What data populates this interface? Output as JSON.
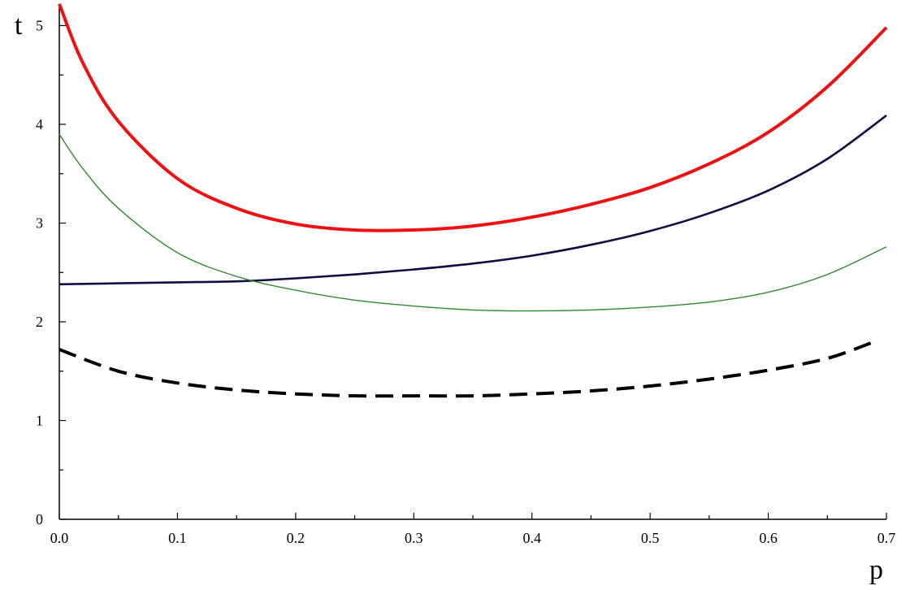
{
  "chart_data": {
    "type": "line",
    "title": "",
    "xlabel": "p",
    "ylabel": "t",
    "xlim": [
      0,
      0.7
    ],
    "ylim": [
      0,
      5.2
    ],
    "grid": false,
    "x_ticks": [
      "0.0",
      "0.1",
      "0.2",
      "0.3",
      "0.4",
      "0.5",
      "0.6",
      "0.7"
    ],
    "y_ticks": [
      "0",
      "1",
      "2",
      "3",
      "4",
      "5"
    ],
    "series": [
      {
        "color": "#ee1111",
        "style": "solid-thick",
        "x": [
          0,
          0.02,
          0.05,
          0.1,
          0.15,
          0.2,
          0.25,
          0.3,
          0.35,
          0.4,
          0.45,
          0.5,
          0.55,
          0.6,
          0.65,
          0.7
        ],
        "y": [
          5.22,
          4.62,
          4.03,
          3.45,
          3.15,
          2.99,
          2.93,
          2.93,
          2.97,
          3.06,
          3.19,
          3.36,
          3.6,
          3.92,
          4.38,
          4.98
        ]
      },
      {
        "color": "#0d0d45",
        "style": "solid",
        "x": [
          0,
          0.05,
          0.1,
          0.15,
          0.2,
          0.25,
          0.3,
          0.35,
          0.4,
          0.45,
          0.5,
          0.55,
          0.6,
          0.65,
          0.7
        ],
        "y": [
          2.38,
          2.39,
          2.4,
          2.41,
          2.44,
          2.48,
          2.53,
          2.59,
          2.67,
          2.78,
          2.92,
          3.1,
          3.33,
          3.65,
          4.09
        ]
      },
      {
        "color": "#2e8b2e",
        "style": "solid-thin",
        "x": [
          0,
          0.02,
          0.05,
          0.1,
          0.15,
          0.2,
          0.25,
          0.3,
          0.35,
          0.4,
          0.45,
          0.5,
          0.55,
          0.6,
          0.65,
          0.7
        ],
        "y": [
          3.9,
          3.55,
          3.15,
          2.7,
          2.46,
          2.32,
          2.22,
          2.16,
          2.12,
          2.11,
          2.12,
          2.15,
          2.2,
          2.3,
          2.48,
          2.76
        ]
      },
      {
        "color": "#000000",
        "style": "dashed",
        "x": [
          0,
          0.05,
          0.1,
          0.15,
          0.2,
          0.25,
          0.3,
          0.35,
          0.4,
          0.45,
          0.5,
          0.55,
          0.6,
          0.65,
          0.69
        ],
        "y": [
          1.72,
          1.5,
          1.38,
          1.31,
          1.27,
          1.25,
          1.25,
          1.25,
          1.27,
          1.3,
          1.35,
          1.42,
          1.51,
          1.63,
          1.8
        ]
      }
    ]
  }
}
